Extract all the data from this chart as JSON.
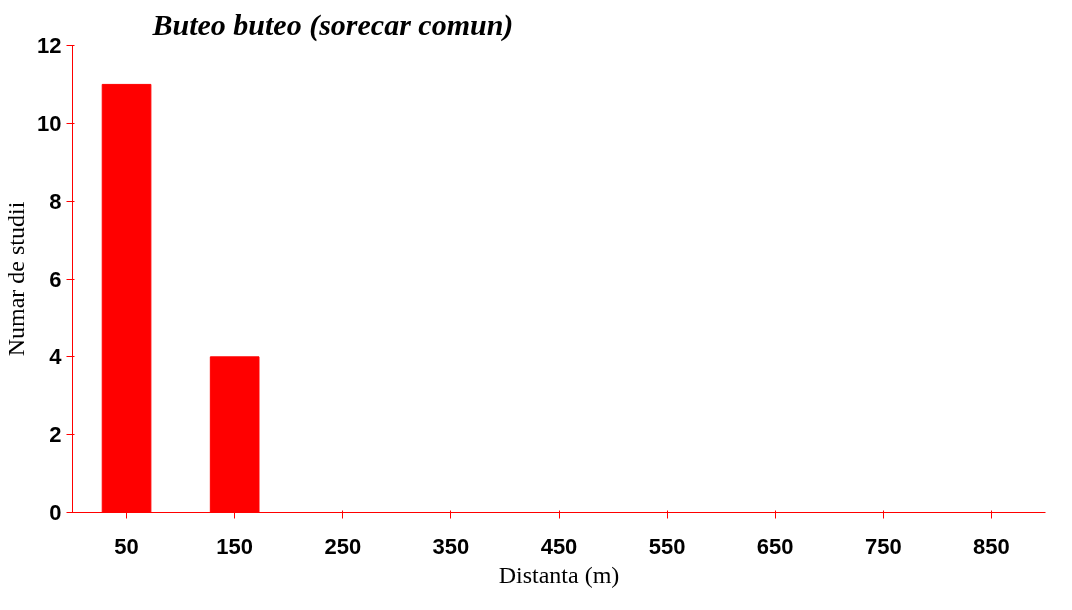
{
  "chart_data": {
    "type": "bar",
    "title": "Buteo buteo (sorecar comun)",
    "xlabel": "Distanta (m)",
    "ylabel": "Numar de studii",
    "categories": [
      "50",
      "150",
      "250",
      "350",
      "450",
      "550",
      "650",
      "750",
      "850"
    ],
    "values": [
      11,
      4,
      0,
      0,
      0,
      0,
      0,
      0,
      0
    ],
    "color": "#ff0000",
    "ylim": [
      0,
      12
    ],
    "yticks": [
      0,
      2,
      4,
      6,
      8,
      10,
      12
    ],
    "grid": false
  }
}
